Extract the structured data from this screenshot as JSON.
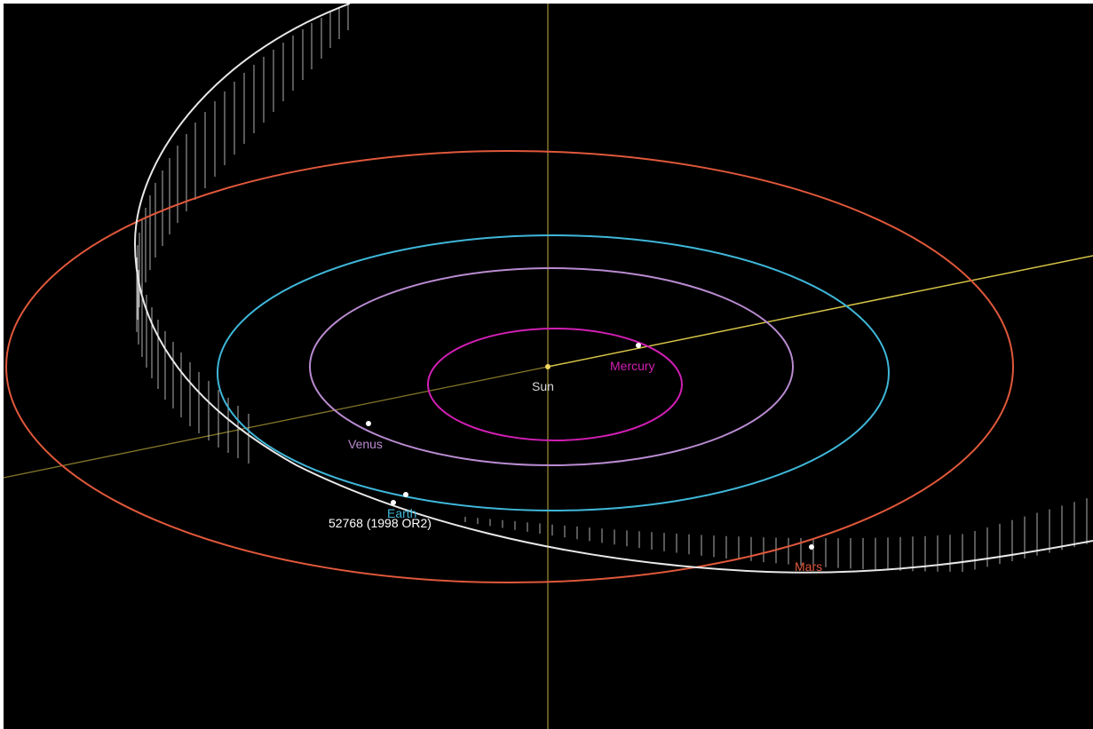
{
  "colors": {
    "background": "#000000",
    "mercury": "#d21fb4",
    "venus": "#b98bd1",
    "earth": "#3fb7d9",
    "mars": "#e0583b",
    "asteroid": "#ffffff",
    "axis": "#c9b340"
  },
  "labels": {
    "sun": "Sun",
    "mercury": "Mercury",
    "venus": "Venus",
    "earth": "Earth",
    "mars": "Mars",
    "asteroid": "52768 (1998 OR2)"
  }
}
